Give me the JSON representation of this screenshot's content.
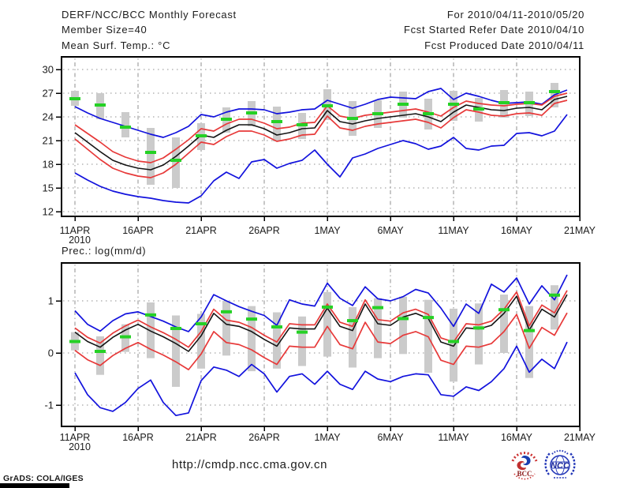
{
  "header": {
    "title": "DERF/NCC/BCC Monthly Forecast",
    "member_size": "Member Size=40",
    "for_range": "For 2010/04/11-2010/05/20",
    "fcst_started": "Fcst Started Refer Date 2010/04/10",
    "fcst_produced": "Fcst Produced Date 2010/04/11"
  },
  "footer": {
    "url": "http://cmdp.ncc.cma.gov.cn",
    "credit": "GrADS: COLA/IGES",
    "bcc_label": "BCC",
    "ncc_label": "NCC"
  },
  "colors": {
    "blue": "#1212dd",
    "red": "#e73939",
    "black": "#141414",
    "green": "#25d125",
    "gray": "#cbcbcb",
    "grid": "#8f8f8f",
    "frame": "#000000"
  },
  "chart_data": [
    {
      "type": "line",
      "title": "Mean Surf. Temp.: °C",
      "start_date": "11APR2010",
      "end_date": "20MAY2010",
      "x_tick_labels": [
        "11APR",
        "16APR",
        "21APR",
        "26APR",
        "1MAY",
        "6MAY",
        "11MAY",
        "16MAY",
        "21MAY"
      ],
      "x_year_label": "2010",
      "ytick_values": [
        30,
        27,
        24,
        21,
        18,
        15,
        12
      ],
      "ylim": [
        12,
        30
      ],
      "grid": true,
      "series": [
        {
          "name": "maximum",
          "color": "blue",
          "values": [
            25.3,
            24.5,
            23.8,
            23.3,
            22.8,
            22.3,
            21.8,
            21.4,
            22.0,
            22.8,
            24.3,
            24.0,
            24.6,
            25.0,
            25.0,
            24.9,
            24.4,
            24.6,
            24.9,
            25.0,
            26.1,
            25.6,
            25.1,
            25.6,
            26.2,
            26.5,
            26.4,
            26.3,
            27.2,
            27.6,
            26.2,
            27.0,
            26.6,
            26.1,
            25.7,
            25.8,
            25.9,
            25.6,
            26.8,
            27.4
          ]
        },
        {
          "name": "upper-spread",
          "color": "red",
          "values": [
            23.0,
            21.9,
            20.8,
            19.6,
            18.9,
            18.4,
            18.2,
            18.8,
            19.9,
            21.1,
            22.5,
            22.2,
            23.1,
            23.7,
            23.7,
            23.2,
            22.5,
            22.7,
            23.2,
            23.3,
            25.4,
            24.1,
            23.8,
            24.2,
            24.4,
            24.6,
            24.8,
            25.0,
            24.6,
            24.1,
            25.2,
            26.0,
            25.7,
            25.5,
            25.4,
            25.6,
            25.7,
            25.5,
            26.6,
            27.0
          ]
        },
        {
          "name": "ensemble-mean",
          "color": "black",
          "values": [
            22.0,
            20.8,
            19.6,
            18.5,
            17.9,
            17.5,
            17.3,
            17.9,
            19.0,
            20.3,
            21.7,
            21.4,
            22.3,
            23.0,
            23.0,
            22.5,
            21.7,
            22.0,
            22.5,
            22.6,
            24.8,
            23.4,
            23.1,
            23.5,
            23.8,
            24.0,
            24.2,
            24.4,
            24.0,
            23.4,
            24.6,
            25.5,
            25.2,
            24.9,
            24.8,
            25.1,
            25.2,
            24.9,
            26.2,
            26.6
          ]
        },
        {
          "name": "lower-spread",
          "color": "red",
          "values": [
            21.2,
            19.9,
            18.6,
            17.5,
            16.9,
            16.5,
            16.3,
            16.9,
            18.0,
            19.4,
            20.8,
            20.5,
            21.5,
            22.2,
            22.2,
            21.7,
            20.9,
            21.2,
            21.7,
            21.8,
            24.1,
            22.6,
            22.3,
            22.8,
            23.1,
            23.3,
            23.5,
            23.7,
            23.3,
            22.6,
            23.9,
            24.9,
            24.6,
            24.2,
            24.1,
            24.4,
            24.5,
            24.2,
            25.7,
            26.1
          ]
        },
        {
          "name": "minimum",
          "color": "blue",
          "values": [
            16.9,
            16.0,
            15.2,
            14.6,
            14.2,
            13.9,
            13.7,
            13.4,
            13.2,
            13.1,
            14.0,
            15.9,
            17.0,
            16.2,
            18.3,
            18.6,
            17.5,
            18.1,
            18.5,
            19.8,
            18.0,
            16.4,
            18.8,
            19.3,
            20.0,
            20.5,
            21.0,
            20.6,
            19.9,
            20.3,
            21.4,
            20.0,
            19.8,
            20.3,
            20.4,
            21.9,
            22.0,
            21.6,
            22.2,
            24.3
          ]
        }
      ],
      "range_bars": {
        "interval_days": 2,
        "color": "gray",
        "ranges": [
          [
            25.4,
            27.3
          ],
          [
            23.7,
            27.0
          ],
          [
            21.4,
            24.6
          ],
          [
            15.4,
            22.6
          ],
          [
            15.0,
            21.4
          ],
          [
            19.8,
            23.2
          ],
          [
            22.0,
            25.2
          ],
          [
            22.8,
            26.0
          ],
          [
            20.9,
            25.3
          ],
          [
            21.2,
            24.5
          ],
          [
            23.6,
            27.5
          ],
          [
            21.6,
            26.0
          ],
          [
            22.6,
            26.1
          ],
          [
            23.9,
            27.2
          ],
          [
            22.4,
            26.3
          ],
          [
            23.5,
            27.3
          ],
          [
            23.4,
            26.4
          ],
          [
            23.9,
            27.4
          ],
          [
            24.1,
            27.2
          ],
          [
            25.2,
            28.3
          ]
        ]
      },
      "dashes": {
        "interval_days": 2,
        "color": "green",
        "values": [
          26.3,
          25.5,
          22.7,
          19.5,
          18.5,
          21.6,
          23.7,
          24.5,
          23.4,
          23.0,
          25.4,
          23.8,
          24.4,
          25.6,
          24.4,
          25.6,
          25.0,
          25.8,
          25.8,
          27.2
        ]
      }
    },
    {
      "type": "line",
      "title": "Prec.: log(mm/d)",
      "start_date": "11APR2010",
      "end_date": "20MAY2010",
      "x_tick_labels": [
        "11APR",
        "16APR",
        "21APR",
        "26APR",
        "1MAY",
        "6MAY",
        "11MAY",
        "16MAY",
        "21MAY"
      ],
      "x_year_label": "2010",
      "ytick_values": [
        1,
        0,
        -1
      ],
      "ylim": [
        -1,
        1
      ],
      "grid": true,
      "series": [
        {
          "name": "maximum",
          "color": "blue",
          "values": [
            0.81,
            0.55,
            0.42,
            0.62,
            0.75,
            0.79,
            0.7,
            0.61,
            0.5,
            0.41,
            0.69,
            1.12,
            1.0,
            0.89,
            0.8,
            0.72,
            0.53,
            1.02,
            0.94,
            0.9,
            1.34,
            1.05,
            0.91,
            1.27,
            1.04,
            1.0,
            1.08,
            1.22,
            1.15,
            0.86,
            0.51,
            0.94,
            0.76,
            1.32,
            1.17,
            1.44,
            0.94,
            1.29,
            1.02,
            1.5
          ]
        },
        {
          "name": "upper-spread",
          "color": "red",
          "values": [
            0.48,
            0.3,
            0.19,
            0.38,
            0.52,
            0.63,
            0.5,
            0.39,
            0.26,
            0.11,
            0.41,
            0.84,
            0.63,
            0.59,
            0.49,
            0.34,
            0.21,
            0.56,
            0.54,
            0.54,
            0.94,
            0.59,
            0.51,
            1.02,
            0.64,
            0.61,
            0.77,
            0.84,
            0.74,
            0.29,
            0.21,
            0.56,
            0.54,
            0.61,
            0.84,
            1.17,
            0.52,
            0.92,
            0.77,
            1.2
          ]
        },
        {
          "name": "ensemble-mean",
          "color": "black",
          "values": [
            0.4,
            0.22,
            0.11,
            0.3,
            0.44,
            0.55,
            0.42,
            0.31,
            0.18,
            0.03,
            0.33,
            0.76,
            0.55,
            0.51,
            0.41,
            0.26,
            0.13,
            0.48,
            0.46,
            0.46,
            0.86,
            0.51,
            0.43,
            0.94,
            0.56,
            0.53,
            0.69,
            0.76,
            0.66,
            0.21,
            0.13,
            0.48,
            0.46,
            0.53,
            0.76,
            1.09,
            0.44,
            0.84,
            0.69,
            1.12
          ]
        },
        {
          "name": "lower-spread",
          "color": "red",
          "values": [
            0.05,
            -0.13,
            -0.24,
            -0.05,
            0.09,
            0.2,
            0.07,
            -0.04,
            -0.17,
            -0.32,
            -0.02,
            0.41,
            0.2,
            0.16,
            0.06,
            -0.09,
            -0.22,
            0.13,
            0.11,
            0.11,
            0.51,
            0.16,
            0.08,
            0.59,
            0.21,
            0.18,
            0.34,
            0.41,
            0.31,
            -0.14,
            -0.22,
            0.13,
            0.11,
            0.18,
            0.41,
            0.74,
            0.09,
            0.49,
            0.34,
            0.77
          ]
        },
        {
          "name": "minimum",
          "color": "blue",
          "values": [
            -0.38,
            -0.8,
            -1.05,
            -1.12,
            -0.95,
            -0.68,
            -0.52,
            -0.95,
            -1.2,
            -1.15,
            -0.53,
            -0.27,
            -0.33,
            -0.45,
            -0.22,
            -0.4,
            -0.75,
            -0.45,
            -0.4,
            -0.6,
            -0.35,
            -0.6,
            -0.7,
            -0.35,
            -0.5,
            -0.55,
            -0.45,
            -0.4,
            -0.42,
            -0.8,
            -0.83,
            -0.65,
            -0.72,
            -0.55,
            -0.3,
            0.13,
            -0.37,
            -0.12,
            -0.3,
            0.21
          ]
        }
      ],
      "range_bars": {
        "interval_days": 2,
        "color": "gray",
        "ranges": [
          [
            0.05,
            0.4
          ],
          [
            -0.42,
            0.32
          ],
          [
            0.02,
            0.55
          ],
          [
            -0.1,
            0.97
          ],
          [
            -0.65,
            0.72
          ],
          [
            -0.3,
            0.75
          ],
          [
            -0.05,
            1.0
          ],
          [
            -0.35,
            0.9
          ],
          [
            -0.3,
            0.78
          ],
          [
            -0.25,
            0.7
          ],
          [
            -0.07,
            1.17
          ],
          [
            -0.28,
            0.88
          ],
          [
            -0.1,
            1.05
          ],
          [
            -0.02,
            1.08
          ],
          [
            -0.38,
            1.02
          ],
          [
            -0.55,
            0.85
          ],
          [
            -0.22,
            0.95
          ],
          [
            0.0,
            1.12
          ],
          [
            -0.48,
            0.9
          ],
          [
            0.45,
            1.3
          ]
        ]
      },
      "dashes": {
        "interval_days": 2,
        "color": "green",
        "values": [
          0.22,
          0.03,
          0.31,
          0.73,
          0.47,
          0.56,
          0.79,
          0.65,
          0.5,
          0.4,
          0.88,
          0.62,
          0.87,
          0.66,
          0.68,
          0.22,
          0.48,
          0.83,
          0.43,
          1.11
        ]
      }
    }
  ]
}
